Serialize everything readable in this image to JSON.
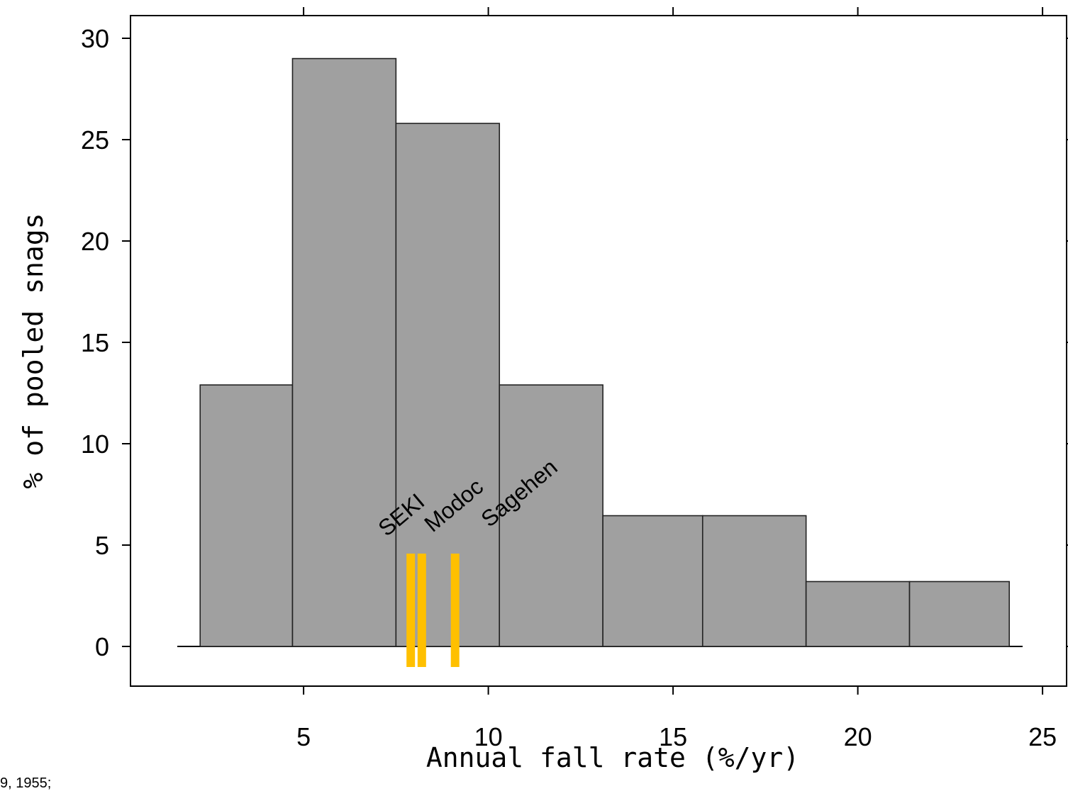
{
  "chart_data": {
    "type": "bar",
    "subtype": "histogram",
    "xlabel": "Annual fall rate (%/yr)",
    "ylabel": "% of pooled snags",
    "xlim": [
      1.5,
      25
    ],
    "ylim": [
      -2,
      30.5
    ],
    "x_ticks": [
      5,
      10,
      15,
      20,
      25
    ],
    "y_ticks": [
      0,
      5,
      10,
      15,
      20,
      25,
      30
    ],
    "bins": [
      {
        "x0": 2.2,
        "x1": 4.7,
        "value": 12.9
      },
      {
        "x0": 4.7,
        "x1": 7.5,
        "value": 29.0
      },
      {
        "x0": 7.5,
        "x1": 10.3,
        "value": 25.8
      },
      {
        "x0": 10.3,
        "x1": 13.1,
        "value": 12.9
      },
      {
        "x0": 13.1,
        "x1": 15.8,
        "value": 6.45
      },
      {
        "x0": 15.8,
        "x1": 18.6,
        "value": 6.45
      },
      {
        "x0": 18.6,
        "x1": 21.4,
        "value": 3.2
      },
      {
        "x0": 21.4,
        "x1": 24.1,
        "value": 3.2
      }
    ],
    "markers": [
      {
        "label": "SEKI",
        "x": 7.9
      },
      {
        "label": "Modoc",
        "x": 8.2
      },
      {
        "label": "Sagehen",
        "x": 9.1
      }
    ],
    "bar_color": "#a0a0a0",
    "marker_color": "#ffc000",
    "grid": false
  },
  "footnote": "9, 1955;"
}
